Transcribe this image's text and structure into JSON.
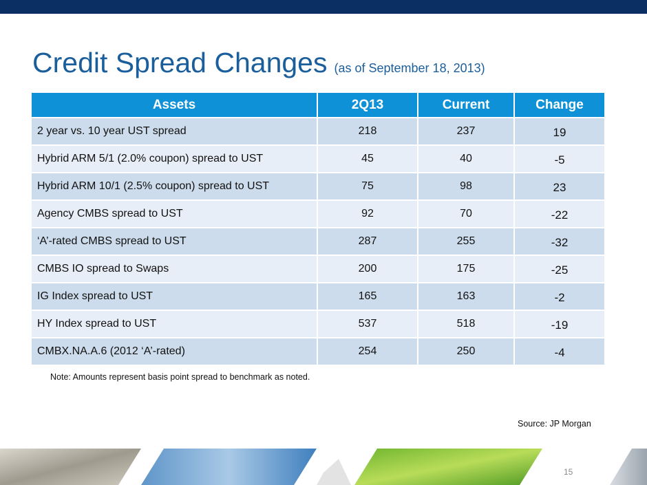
{
  "title": {
    "main": "Credit Spread Changes",
    "subtitle": "(as of September 18, 2013)"
  },
  "table": {
    "headers": [
      "Assets",
      "2Q13",
      "Current",
      "Change"
    ],
    "rows": [
      {
        "asset": "2 year vs. 10 year UST spread",
        "q2": "218",
        "current": "237",
        "change": "19"
      },
      {
        "asset": "Hybrid ARM 5/1 (2.0% coupon) spread to UST",
        "q2": "45",
        "current": "40",
        "change": "-5"
      },
      {
        "asset": "Hybrid ARM 10/1 (2.5% coupon) spread to UST",
        "q2": "75",
        "current": "98",
        "change": "23"
      },
      {
        "asset": "Agency CMBS spread to UST",
        "q2": "92",
        "current": "70",
        "change": "-22"
      },
      {
        "asset": "‘A’-rated CMBS spread to UST",
        "q2": "287",
        "current": "255",
        "change": "-32"
      },
      {
        "asset": "CMBS IO spread to Swaps",
        "q2": "200",
        "current": "175",
        "change": "-25"
      },
      {
        "asset": "IG Index spread to UST",
        "q2": "165",
        "current": "163",
        "change": "-2"
      },
      {
        "asset": "HY Index spread to UST",
        "q2": "537",
        "current": "518",
        "change": "-19"
      },
      {
        "asset": "CMBX.NA.A.6 (2012 ‘A’-rated)",
        "q2": "254",
        "current": "250",
        "change": "-4"
      }
    ]
  },
  "note": "Note: Amounts represent basis point spread to benchmark as noted.",
  "source": "Source: JP Morgan",
  "page_number": "15",
  "colors": {
    "top_bar": "#0b2f63",
    "title": "#1b5e9c",
    "header_fill": "#0f91d8",
    "row_dark": "#cddcec",
    "row_light": "#e8eef7"
  }
}
